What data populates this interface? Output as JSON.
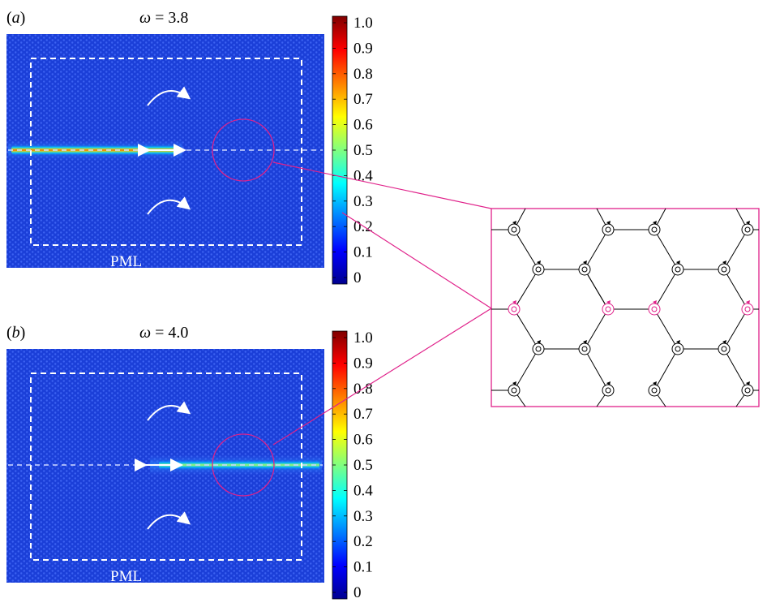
{
  "panels": [
    {
      "label_letter": "a",
      "omega_symbol": "ω",
      "omega_value": "3.8",
      "pml_label": "PML",
      "wave_extent": "left-half",
      "colorbar_ticks": [
        "1.0",
        "0.9",
        "0.8",
        "0.7",
        "0.6",
        "0.5",
        "0.4",
        "0.3",
        "0.2",
        "0.1",
        "0"
      ]
    },
    {
      "label_letter": "b",
      "omega_symbol": "ω",
      "omega_value": "4.0",
      "pml_label": "PML",
      "wave_extent": "right-half",
      "colorbar_ticks": [
        "1.0",
        "0.9",
        "0.8",
        "0.7",
        "0.6",
        "0.5",
        "0.4",
        "0.3",
        "0.2",
        "0.1",
        "0"
      ]
    }
  ],
  "colormap": [
    "#00008f",
    "#0000ff",
    "#0080ff",
    "#00ffff",
    "#80ff80",
    "#ffff00",
    "#ff8000",
    "#ff0000",
    "#800000"
  ],
  "colors": {
    "field_background": "#1a3dd6",
    "zoom_accent": "#e0218a",
    "lattice": "#000000"
  },
  "inset": {
    "description_icons": "rotating-gyroscope-icon",
    "highlighted_row": "middle"
  }
}
